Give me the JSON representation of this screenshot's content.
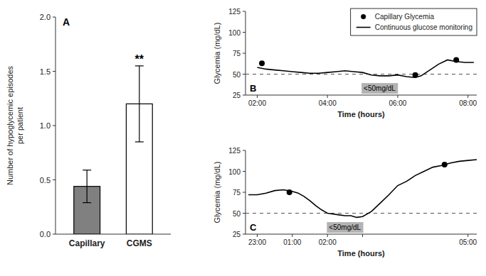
{
  "chart_data": [
    {
      "type": "bar",
      "title": "A",
      "categories": [
        "Capillary",
        "CGMS"
      ],
      "values": [
        0.44,
        1.2
      ],
      "errors": [
        0.15,
        0.35
      ],
      "colors": [
        "#808080",
        "#ffffff"
      ],
      "ylabel": [
        "Number of hypoglycemic episodes",
        "per patient"
      ],
      "ylim": [
        0,
        2.0
      ],
      "yticks": [
        {
          "value": 0,
          "label": "0.0"
        },
        0.5,
        {
          "value": 1,
          "label": "1.0"
        },
        1.5,
        {
          "value": 2,
          "label": "2.0"
        }
      ],
      "annotations": [
        {
          "text": "**",
          "category": "CGMS"
        }
      ],
      "grid": false
    },
    {
      "type": "line",
      "title": "B",
      "xlabel": "Time (hours)",
      "ylabel": "Glycemia (mg/dL)",
      "xlim": [
        100,
        495
      ],
      "ylim": [
        25,
        125
      ],
      "xticks": [
        {
          "value": 120,
          "label": "02:00"
        },
        {
          "value": 240,
          "label": "04:00"
        },
        {
          "value": 360,
          "label": "06:00"
        },
        {
          "value": 480,
          "label": "08:00"
        }
      ],
      "yticks": [
        25,
        50,
        75,
        100,
        125
      ],
      "threshold": 50,
      "threshold_label": "<50mg/dL",
      "series": [
        {
          "name": "Capillary Glycemia",
          "type": "scatter",
          "marker": "circle",
          "color": "#000000",
          "x": [
            128,
            390,
            460
          ],
          "values": [
            63,
            49,
            67
          ]
        },
        {
          "name": "Continuous glucose monitoring",
          "type": "line",
          "line_style": "solid",
          "color": "#000000",
          "x": [
            120,
            135,
            150,
            165,
            180,
            195,
            210,
            225,
            240,
            255,
            270,
            285,
            300,
            315,
            330,
            345,
            360,
            375,
            390,
            400,
            415,
            430,
            445,
            460,
            475,
            490
          ],
          "values": [
            58,
            56,
            55,
            54,
            53,
            52,
            51,
            51,
            52,
            53,
            54,
            53,
            52,
            49,
            48,
            48,
            49,
            47,
            46,
            48,
            55,
            62,
            67,
            65,
            64,
            64
          ]
        }
      ],
      "legend": "upper right",
      "grid": false
    },
    {
      "type": "line",
      "title": "C",
      "xlabel": "Time (hours)",
      "ylabel": "Glycemia (mg/dL)",
      "xlim": [
        -20,
        375
      ],
      "ylim": [
        25,
        125
      ],
      "xticks": [
        {
          "value": 0,
          "label": "23:00"
        },
        {
          "value": 60,
          "label": "01:00"
        },
        {
          "value": 120,
          "label": "02:00"
        },
        {
          "value": 180,
          "label": null
        },
        {
          "value": 360,
          "label": "05:00"
        }
      ],
      "yticks": [
        25,
        50,
        75,
        100,
        125
      ],
      "threshold": 50,
      "threshold_label": "<50mg/dL",
      "series": [
        {
          "type": "scatter",
          "marker": "circle",
          "color": "#000000",
          "x": [
            55,
            320
          ],
          "values": [
            75,
            108
          ]
        },
        {
          "type": "line",
          "line_style": "solid",
          "color": "#000000",
          "x": [
            -15,
            0,
            15,
            30,
            45,
            60,
            70,
            80,
            90,
            100,
            110,
            115,
            120,
            130,
            140,
            150,
            160,
            165,
            170,
            180,
            195,
            210,
            225,
            240,
            255,
            270,
            285,
            300,
            315,
            330,
            345,
            360,
            375
          ],
          "values": [
            72,
            72,
            74,
            77,
            78,
            76,
            74,
            70,
            65,
            59,
            54,
            52,
            50,
            49,
            48,
            47,
            47,
            46,
            45,
            46,
            52,
            62,
            72,
            83,
            88,
            95,
            100,
            105,
            107,
            110,
            112,
            113,
            114
          ]
        }
      ],
      "grid": false
    }
  ]
}
